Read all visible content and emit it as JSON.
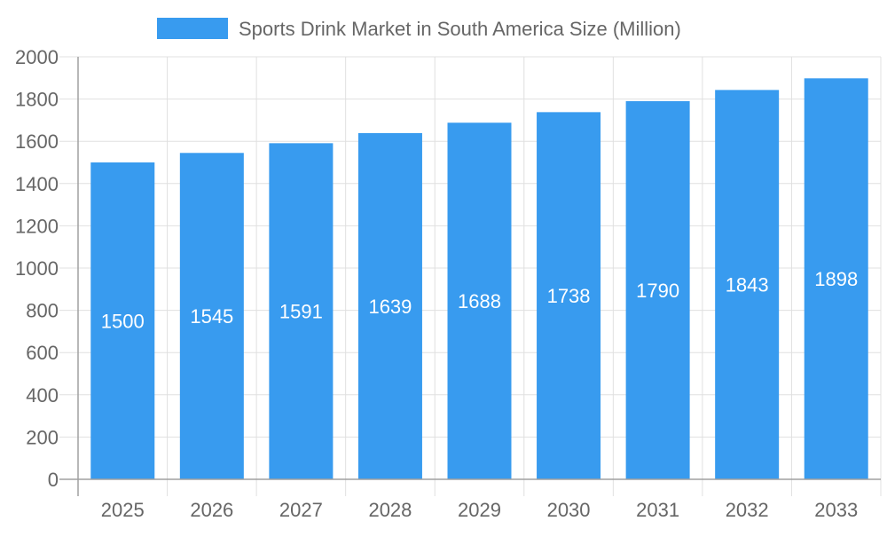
{
  "chart_data": {
    "type": "bar",
    "title": "",
    "legend": {
      "label": "Sports Drink Market in South America Size (Million)",
      "placement": "top"
    },
    "categories": [
      "2025",
      "2026",
      "2027",
      "2028",
      "2029",
      "2030",
      "2031",
      "2032",
      "2033"
    ],
    "series": [
      {
        "name": "Sports Drink Market in South America Size (Million)",
        "values": [
          1500,
          1545,
          1591,
          1639,
          1688,
          1738,
          1790,
          1843,
          1898
        ]
      }
    ],
    "xlabel": "",
    "ylabel": "",
    "ylim": [
      0,
      2000
    ],
    "yticks": [
      "0",
      "200",
      "400",
      "600",
      "800",
      "1000",
      "1200",
      "1400",
      "1600",
      "1800",
      "2000"
    ],
    "grid": true,
    "data_labels": true,
    "colors": {
      "bar": "#389BEF",
      "grid": "#e0e0e0",
      "axis": "#a0a0a0",
      "text": "#666666",
      "label": "#ffffff"
    }
  }
}
